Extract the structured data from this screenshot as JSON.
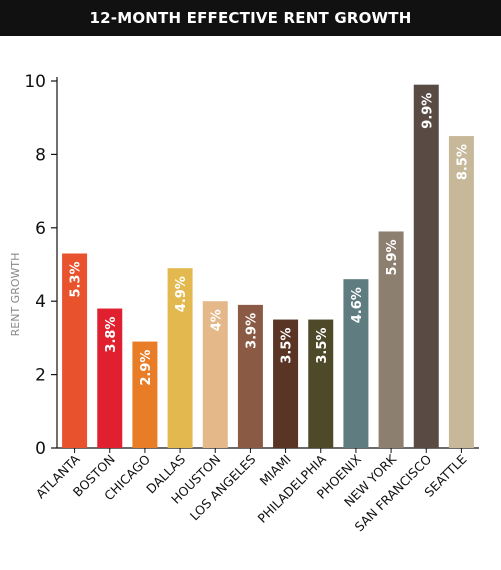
{
  "chart_data": {
    "type": "bar",
    "title": "12-MONTH EFFECTIVE RENT GROWTH",
    "ylabel": "RENT GROWTH",
    "xlabel": "",
    "ylim": [
      0,
      10
    ],
    "yticks": [
      0,
      2,
      4,
      6,
      8,
      10
    ],
    "grid": false,
    "categories": [
      "ATLANTA",
      "BOSTON",
      "CHICAGO",
      "DALLAS",
      "HOUSTON",
      "LOS ANGELES",
      "MIAMI",
      "PHILADELPHIA",
      "PHOENIX",
      "NEW YORK",
      "SAN FRANCISCO",
      "SEATTLE"
    ],
    "values": [
      5.3,
      3.8,
      2.9,
      4.9,
      4.0,
      3.9,
      3.5,
      3.5,
      4.6,
      5.9,
      9.9,
      8.5
    ],
    "data_labels": [
      "5.3%",
      "3.8%",
      "2.9%",
      "4.9%",
      "4%",
      "3.9%",
      "3.5%",
      "3.5%",
      "4.6%",
      "5.9%",
      "9.9%",
      "8.5%"
    ],
    "colors": [
      "#e8522c",
      "#e0202f",
      "#e97c27",
      "#e3b94f",
      "#e4b888",
      "#8a5a44",
      "#5a3425",
      "#4e4a29",
      "#5f7c80",
      "#8c7f70",
      "#5a4a44",
      "#c7b89a"
    ]
  }
}
